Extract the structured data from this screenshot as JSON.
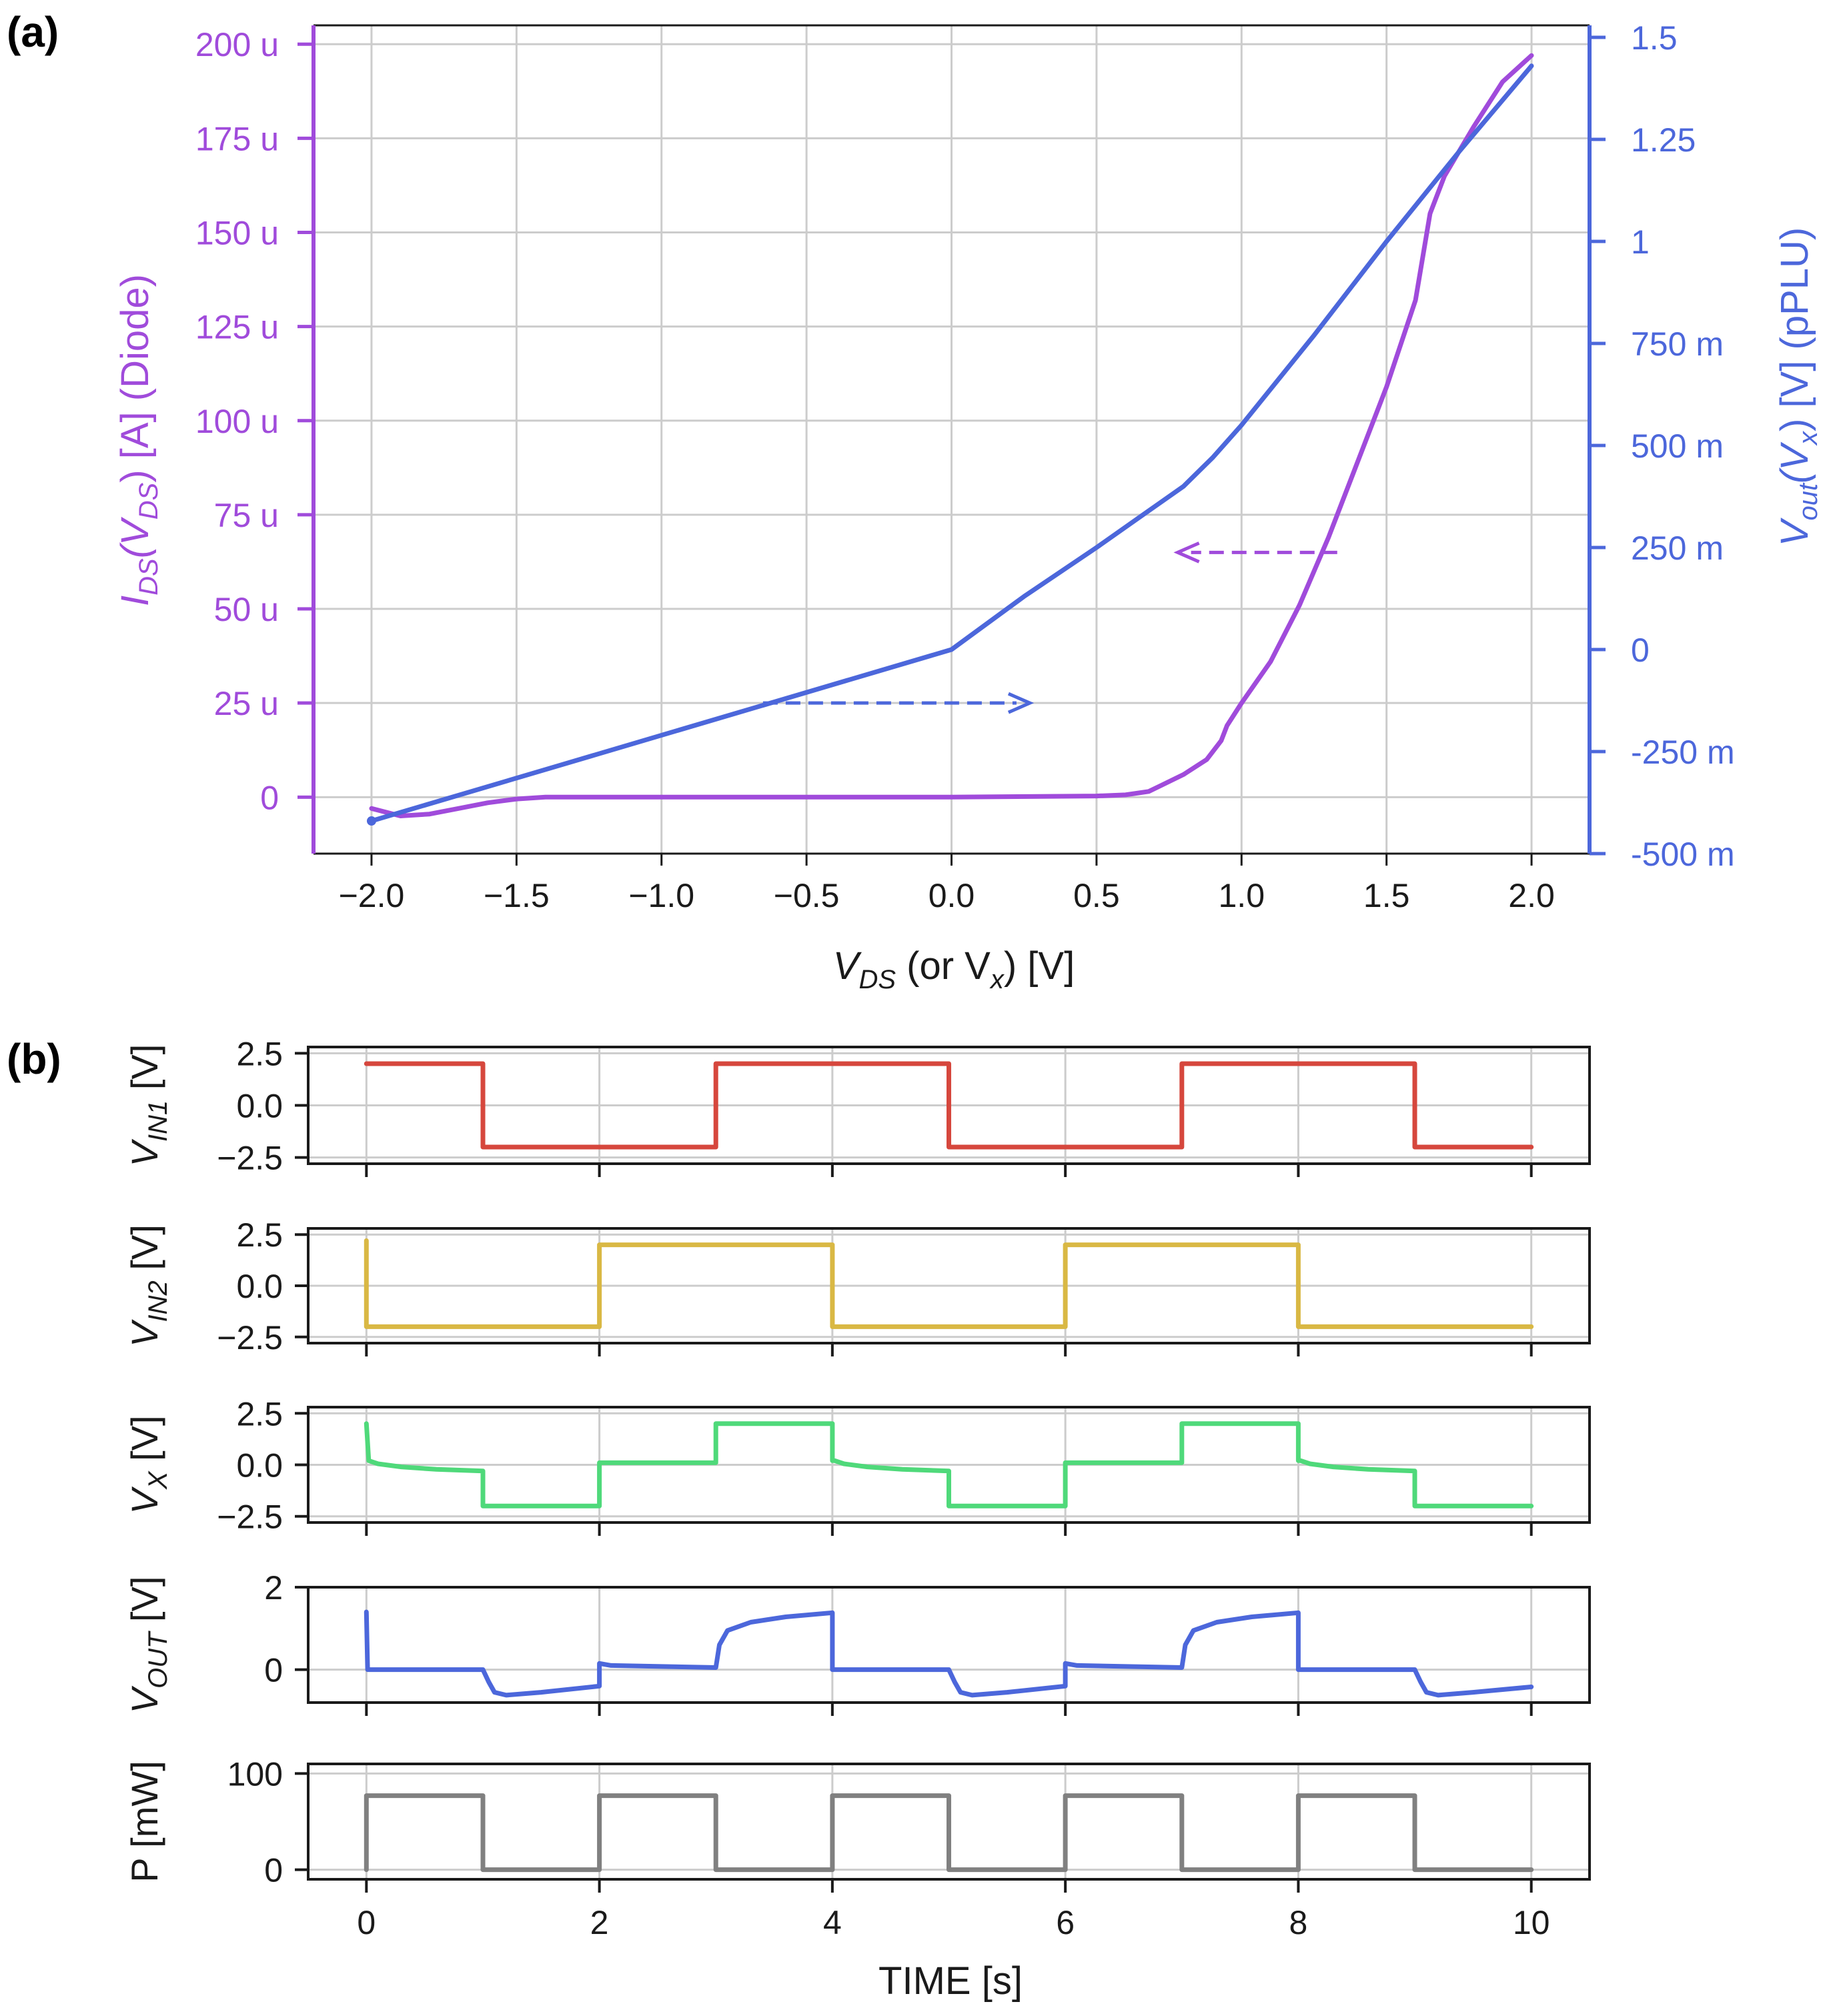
{
  "colors": {
    "purple": "#A04BDB",
    "blue": "#4C67DB",
    "red": "#D6473D",
    "yellow": "#D9B844",
    "green": "#4FD97A",
    "gray": "#808080",
    "grid": "#CCCCCC",
    "axis": "#1a1a1a"
  },
  "chart_data": [
    {
      "id": "a",
      "panel_label": "(a)",
      "type": "line",
      "xlabel": {
        "main": "V",
        "sub": "DS",
        "mid": "  (or V",
        "sub2": "x",
        "tail": ")  [V]"
      },
      "xlim": [
        -2.2,
        2.2
      ],
      "x_ticks": [
        -2.0,
        -1.5,
        -1.0,
        -0.5,
        0.0,
        0.5,
        1.0,
        1.5,
        2.0
      ],
      "x_tick_labels": [
        "−2.0",
        "−1.5",
        "−1.0",
        "−0.5",
        "0.0",
        "0.5",
        "1.0",
        "1.5",
        "2.0"
      ],
      "left_axis": {
        "label_parts": {
          "i": "I",
          "sub": "DS",
          "paren": "(V",
          "sub2": "DS",
          "close": ")",
          "unit": "[A]",
          "tag": "(Diode)"
        },
        "ylim": [
          -15,
          205
        ],
        "ticks": [
          0,
          25,
          50,
          75,
          100,
          125,
          150,
          175,
          200
        ],
        "tick_labels": [
          "0",
          "25 u",
          "50 u",
          "75 u",
          "100 u",
          "125 u",
          "150 u",
          "175 u",
          "200 u"
        ]
      },
      "right_axis": {
        "label_parts": {
          "v": "V",
          "sub": "out",
          "paren": "(V",
          "sub2": "x",
          "close": ")",
          "unit": "[V]",
          "tag": "(pPLU)"
        },
        "ylim": [
          -0.5,
          1.5
        ],
        "ticks": [
          -0.5,
          -0.25,
          0,
          0.25,
          0.5,
          0.75,
          1.0,
          1.25,
          1.5
        ],
        "tick_labels": [
          "-500 m",
          "-250 m",
          "0",
          "250 m",
          "500 m",
          "750 m",
          "1",
          "1.25",
          "1.5"
        ]
      },
      "series": [
        {
          "name": "I_DS(V_DS) (Diode)",
          "axis": "left",
          "color_key": "purple",
          "x": [
            -2.0,
            -1.9,
            -1.8,
            -1.7,
            -1.6,
            -1.5,
            -1.4,
            -1.2,
            -1.0,
            -0.5,
            0.0,
            0.5,
            0.6,
            0.68,
            0.72,
            0.8,
            0.88,
            0.93,
            0.95,
            1.0,
            1.1,
            1.2,
            1.3,
            1.4,
            1.5,
            1.6,
            1.65,
            1.7,
            1.8,
            1.9,
            2.0
          ],
          "y": [
            -3,
            -5,
            -4.5,
            -3,
            -1.5,
            -0.5,
            0,
            0,
            0,
            0,
            0,
            0.3,
            0.6,
            1.5,
            3,
            6,
            10,
            15,
            19,
            25,
            36,
            51,
            69,
            89,
            109,
            132,
            155,
            165,
            178,
            190,
            197
          ]
        },
        {
          "name": "V_out(V_x) (pPLU)",
          "axis": "right",
          "color_key": "blue",
          "x": [
            -2.0,
            0.0,
            0.25,
            0.5,
            0.7,
            0.8,
            0.9,
            1.0,
            1.25,
            1.5,
            1.75,
            2.0
          ],
          "y": [
            -0.42,
            0.0,
            0.13,
            0.25,
            0.35,
            0.4,
            0.47,
            0.55,
            0.77,
            1.0,
            1.22,
            1.43
          ]
        }
      ],
      "annotations": [
        {
          "kind": "dashed-arrow",
          "color_key": "blue",
          "from": [
            -0.65,
            25
          ],
          "to": [
            0.27,
            25
          ]
        },
        {
          "kind": "dashed-arrow",
          "color_key": "purple",
          "from": [
            1.33,
            65
          ],
          "to": [
            0.78,
            65
          ]
        }
      ]
    },
    {
      "id": "b",
      "panel_label": "(b)",
      "type": "line",
      "xlabel": "TIME [s]",
      "xlim": [
        -0.5,
        10.5
      ],
      "x_ticks": [
        0,
        2,
        4,
        6,
        8,
        10
      ],
      "x_tick_labels": [
        "0",
        "2",
        "4",
        "6",
        "8",
        "10"
      ],
      "subplots": [
        {
          "name": "VIN1",
          "ylabel": {
            "main": "V",
            "sub": "IN1",
            "unit": " [V]"
          },
          "color_key": "red",
          "ylim": [
            -2.8,
            2.8
          ],
          "ticks": [
            -2.5,
            0.0,
            2.5
          ],
          "tick_labels": [
            "−2.5",
            "0.0",
            "2.5"
          ],
          "x": [
            0,
            1,
            1,
            3,
            3,
            5,
            5,
            7,
            7,
            9,
            9,
            10
          ],
          "y": [
            2,
            2,
            -2,
            -2,
            2,
            2,
            -2,
            -2,
            2,
            2,
            -2,
            -2
          ]
        },
        {
          "name": "VIN2",
          "ylabel": {
            "main": "V",
            "sub": "IN2",
            "unit": " [V]"
          },
          "color_key": "yellow",
          "ylim": [
            -2.8,
            2.8
          ],
          "ticks": [
            -2.5,
            0.0,
            2.5
          ],
          "tick_labels": [
            "−2.5",
            "0.0",
            "2.5"
          ],
          "x": [
            0,
            0,
            2,
            2,
            4,
            4,
            6,
            6,
            8,
            8,
            10
          ],
          "y": [
            2.2,
            -2,
            -2,
            2,
            2,
            -2,
            -2,
            2,
            2,
            -2,
            -2
          ]
        },
        {
          "name": "VX",
          "ylabel": {
            "main": "V",
            "sub": "X",
            "unit": " [V]"
          },
          "color_key": "green",
          "ylim": [
            -2.8,
            2.8
          ],
          "ticks": [
            -2.5,
            0.0,
            2.5
          ],
          "tick_labels": [
            "−2.5",
            "0.0",
            "2.5"
          ],
          "x": [
            0,
            0.02,
            0.1,
            0.3,
            0.6,
            1,
            1,
            2,
            2,
            3,
            3,
            4,
            4,
            4.02,
            4.1,
            4.3,
            4.6,
            5,
            5,
            6,
            6,
            7,
            7,
            8,
            8,
            8.02,
            8.1,
            8.3,
            8.6,
            9,
            9,
            10
          ],
          "y": [
            2,
            0.2,
            0.05,
            -0.1,
            -0.22,
            -0.3,
            -2,
            -2,
            0.1,
            0.1,
            2,
            2,
            0.2,
            0.2,
            0.05,
            -0.1,
            -0.22,
            -0.3,
            -2,
            -2,
            0.1,
            0.1,
            2,
            2,
            0.2,
            0.2,
            0.05,
            -0.1,
            -0.22,
            -0.3,
            -2,
            -2
          ]
        },
        {
          "name": "VOUT",
          "ylabel": {
            "main": "V",
            "sub": "OUT",
            "unit": " [V]"
          },
          "color_key": "blue",
          "ylim": [
            -0.8,
            2.0
          ],
          "ticks": [
            0,
            2
          ],
          "tick_labels": [
            "0",
            "2"
          ],
          "x": [
            0,
            0.01,
            1,
            1.05,
            1.1,
            1.2,
            1.5,
            2,
            2,
            2.1,
            3,
            3.03,
            3.1,
            3.3,
            3.6,
            4,
            4,
            5,
            5.05,
            5.1,
            5.2,
            5.5,
            6,
            6,
            6.1,
            7,
            7.03,
            7.1,
            7.3,
            7.6,
            8,
            8,
            9,
            9.05,
            9.1,
            9.2,
            9.5,
            10
          ],
          "y": [
            1.4,
            0,
            0,
            -0.3,
            -0.55,
            -0.62,
            -0.55,
            -0.4,
            0.15,
            0.1,
            0.05,
            0.6,
            0.95,
            1.15,
            1.28,
            1.38,
            0,
            0,
            -0.3,
            -0.55,
            -0.62,
            -0.55,
            -0.4,
            0.15,
            0.1,
            0.05,
            0.6,
            0.95,
            1.15,
            1.28,
            1.38,
            0,
            0,
            -0.3,
            -0.55,
            -0.62,
            -0.55,
            -0.42
          ]
        },
        {
          "name": "P",
          "ylabel": {
            "main": "P [mW]",
            "sub": "",
            "unit": ""
          },
          "color_key": "gray",
          "ylim": [
            -10,
            110
          ],
          "ticks": [
            0,
            100
          ],
          "tick_labels": [
            "0",
            "100"
          ],
          "x": [
            0,
            0,
            1,
            1,
            2,
            2,
            3,
            3,
            4,
            4,
            5,
            5,
            6,
            6,
            7,
            7,
            8,
            8,
            9,
            9,
            10
          ],
          "y": [
            0,
            77,
            77,
            0,
            0,
            77,
            77,
            0,
            0,
            77,
            77,
            0,
            0,
            77,
            77,
            0,
            0,
            77,
            77,
            0,
            0
          ]
        }
      ]
    }
  ]
}
